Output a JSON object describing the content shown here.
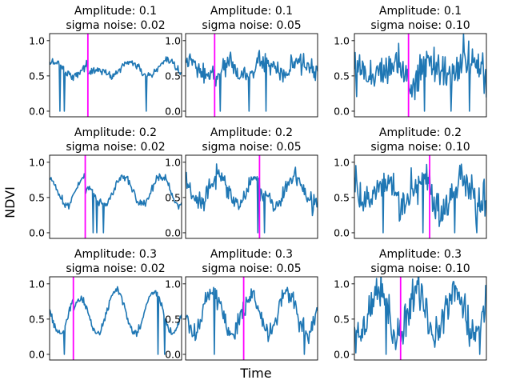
{
  "figure": {
    "ylabel": "NDVI",
    "xlabel": "Time"
  },
  "colors": {
    "series": "#1f77b4",
    "breakpoint": "#ff00ff",
    "axes": "#000000"
  },
  "chart_data": [
    {
      "type": "line",
      "title": [
        "Amplitude: 0.1",
        "sigma noise: 0.02"
      ],
      "amplitude": 0.1,
      "noise": 0.02,
      "break_fraction": 0.29,
      "dropouts": [
        0.08,
        0.11,
        0.73
      ],
      "ylim": [
        -0.08,
        1.1
      ],
      "yticks": [
        0.0,
        0.5,
        1.0
      ],
      "ytick_labels": [
        "0.0",
        "0.5",
        "1.0"
      ],
      "xticks": []
    },
    {
      "type": "line",
      "title": [
        "Amplitude: 0.1",
        "sigma noise: 0.05"
      ],
      "amplitude": 0.1,
      "noise": 0.05,
      "break_fraction": 0.22,
      "dropouts": [
        0.26,
        0.48,
        0.61
      ],
      "ylim": [
        -0.08,
        1.1
      ],
      "yticks": [
        0.0,
        0.5,
        1.0
      ],
      "ytick_labels": [
        "0.0",
        "0.5",
        "1.0"
      ],
      "xticks": []
    },
    {
      "type": "line",
      "title": [
        "Amplitude: 0.1",
        "sigma noise: 0.10"
      ],
      "amplitude": 0.1,
      "noise": 0.1,
      "break_fraction": 0.41,
      "dropouts": [
        0.53,
        0.73,
        0.87
      ],
      "ylim": [
        -0.08,
        1.1
      ],
      "yticks": [
        0.0,
        0.5,
        1.0
      ],
      "ytick_labels": [
        "0.0",
        "0.5",
        "1.0"
      ],
      "xticks": []
    },
    {
      "type": "line",
      "title": [
        "Amplitude: 0.2",
        "sigma noise: 0.02"
      ],
      "amplitude": 0.2,
      "noise": 0.02,
      "break_fraction": 0.27,
      "dropouts": [
        0.33,
        0.36,
        0.41
      ],
      "ylim": [
        -0.08,
        1.1
      ],
      "yticks": [
        0.0,
        0.5,
        1.0
      ],
      "ytick_labels": [
        "0.0",
        "0.5",
        "1.0"
      ],
      "xticks": []
    },
    {
      "type": "line",
      "title": [
        "Amplitude: 0.2",
        "sigma noise: 0.05"
      ],
      "amplitude": 0.2,
      "noise": 0.05,
      "break_fraction": 0.56,
      "dropouts": [
        0.55,
        0.6
      ],
      "ylim": [
        -0.08,
        1.1
      ],
      "yticks": [
        0.0,
        0.5,
        1.0
      ],
      "ytick_labels": [
        "0.0",
        "0.5",
        "1.0"
      ],
      "xticks": []
    },
    {
      "type": "line",
      "title": [
        "Amplitude: 0.2",
        "sigma noise: 0.10"
      ],
      "amplitude": 0.2,
      "noise": 0.1,
      "break_fraction": 0.57,
      "dropouts": [
        0.22,
        0.52,
        0.76,
        0.93
      ],
      "ylim": [
        -0.08,
        1.1
      ],
      "yticks": [
        0.0,
        0.5,
        1.0
      ],
      "ytick_labels": [
        "0.0",
        "0.5",
        "1.0"
      ],
      "xticks": []
    },
    {
      "type": "line",
      "title": [
        "Amplitude: 0.3",
        "sigma noise: 0.02"
      ],
      "amplitude": 0.3,
      "noise": 0.02,
      "break_fraction": 0.18,
      "dropouts": [
        0.11,
        0.82,
        0.87
      ],
      "ylim": [
        -0.08,
        1.1
      ],
      "yticks": [
        0.0,
        0.5,
        1.0
      ],
      "ytick_labels": [
        "0.0",
        "0.5",
        "1.0"
      ],
      "xticks": []
    },
    {
      "type": "line",
      "title": [
        "Amplitude: 0.3",
        "sigma noise: 0.05"
      ],
      "amplitude": 0.3,
      "noise": 0.05,
      "break_fraction": 0.44,
      "dropouts": [
        0.22,
        0.9
      ],
      "ylim": [
        -0.08,
        1.1
      ],
      "yticks": [
        0.0,
        0.5,
        1.0
      ],
      "ytick_labels": [
        "0.0",
        "0.5",
        "1.0"
      ],
      "xticks": []
    },
    {
      "type": "line",
      "title": [
        "Amplitude: 0.3",
        "sigma noise: 0.10"
      ],
      "amplitude": 0.3,
      "noise": 0.1,
      "break_fraction": 0.35,
      "dropouts": [
        0.24,
        0.95
      ],
      "ylim": [
        -0.08,
        1.1
      ],
      "yticks": [
        0.0,
        0.5,
        1.0
      ],
      "ytick_labels": [
        "0.0",
        "0.5",
        "1.0"
      ],
      "xticks": []
    }
  ]
}
